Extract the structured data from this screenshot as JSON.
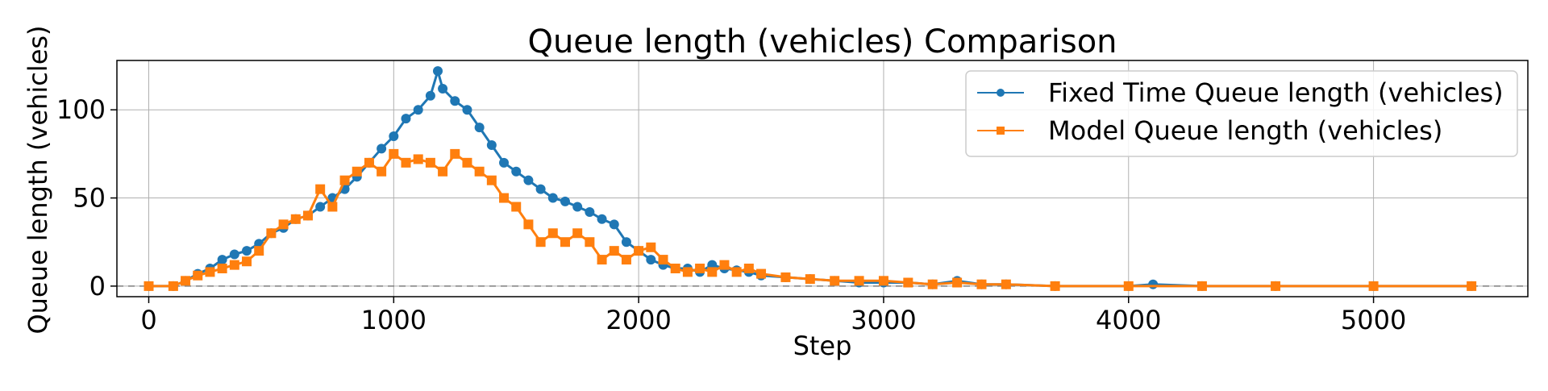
{
  "chart_data": {
    "type": "line",
    "title": "Queue length (vehicles) Comparison",
    "xlabel": "Step",
    "ylabel": "Queue length (vehicles)",
    "xlim": [
      -130,
      5630
    ],
    "ylim": [
      -6,
      128
    ],
    "xticks": [
      0,
      1000,
      2000,
      3000,
      4000,
      5000
    ],
    "yticks": [
      0,
      50,
      100
    ],
    "grid": true,
    "legend_position": "top-right",
    "reference_line": {
      "y": 0,
      "style": "dashed",
      "color": "#808080"
    },
    "series": [
      {
        "name": "Fixed Time Queue length (vehicles)",
        "color": "#1f77b4",
        "marker": "circle",
        "x": [
          0,
          100,
          150,
          200,
          250,
          300,
          350,
          400,
          450,
          500,
          550,
          600,
          650,
          700,
          750,
          800,
          850,
          900,
          950,
          1000,
          1050,
          1100,
          1150,
          1180,
          1200,
          1250,
          1300,
          1350,
          1400,
          1450,
          1500,
          1550,
          1600,
          1650,
          1700,
          1750,
          1800,
          1850,
          1900,
          1950,
          2000,
          2050,
          2100,
          2150,
          2200,
          2250,
          2300,
          2350,
          2400,
          2450,
          2500,
          2600,
          2700,
          2800,
          2900,
          3000,
          3100,
          3200,
          3300,
          3400,
          3500,
          3700,
          4000,
          4100,
          4300,
          4600,
          5000,
          5400
        ],
        "values": [
          0,
          0,
          3,
          7,
          10,
          15,
          18,
          20,
          24,
          30,
          33,
          38,
          40,
          45,
          50,
          55,
          62,
          70,
          78,
          85,
          95,
          100,
          108,
          122,
          112,
          105,
          100,
          90,
          80,
          70,
          65,
          60,
          55,
          50,
          48,
          45,
          42,
          38,
          35,
          25,
          20,
          15,
          12,
          10,
          10,
          8,
          12,
          10,
          9,
          8,
          6,
          5,
          4,
          3,
          2,
          2,
          2,
          1,
          3,
          1,
          1,
          0,
          0,
          1,
          0,
          0,
          0,
          0
        ]
      },
      {
        "name": "Model Queue length (vehicles)",
        "color": "#ff7f0e",
        "marker": "square",
        "x": [
          0,
          100,
          150,
          200,
          250,
          300,
          350,
          400,
          450,
          500,
          550,
          600,
          650,
          700,
          750,
          800,
          850,
          900,
          950,
          1000,
          1050,
          1100,
          1150,
          1200,
          1250,
          1300,
          1350,
          1400,
          1450,
          1500,
          1550,
          1600,
          1650,
          1700,
          1750,
          1800,
          1850,
          1900,
          1950,
          2000,
          2050,
          2100,
          2150,
          2200,
          2250,
          2300,
          2350,
          2400,
          2450,
          2500,
          2600,
          2700,
          2800,
          2900,
          3000,
          3100,
          3200,
          3300,
          3400,
          3500,
          3700,
          4000,
          4300,
          4600,
          5000,
          5400
        ],
        "values": [
          0,
          0,
          3,
          6,
          8,
          10,
          12,
          14,
          20,
          30,
          35,
          38,
          40,
          55,
          45,
          60,
          65,
          70,
          65,
          75,
          70,
          72,
          70,
          65,
          75,
          70,
          65,
          60,
          50,
          45,
          35,
          25,
          30,
          25,
          30,
          25,
          15,
          20,
          15,
          20,
          22,
          15,
          10,
          8,
          10,
          8,
          12,
          8,
          10,
          7,
          5,
          4,
          3,
          3,
          3,
          2,
          1,
          2,
          1,
          1,
          0,
          0,
          0,
          0,
          0,
          0
        ]
      }
    ]
  }
}
